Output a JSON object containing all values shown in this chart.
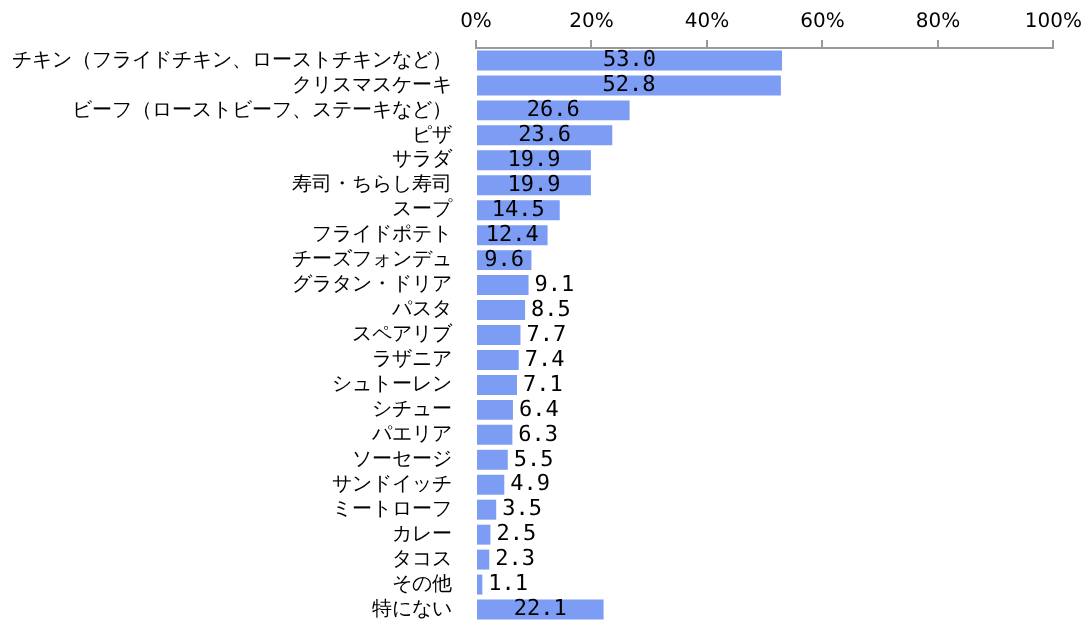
{
  "chart_data": {
    "type": "bar",
    "orientation": "horizontal",
    "categories": [
      "チキン（フライドチキン、ローストチキンなど）",
      "クリスマスケーキ",
      "ビーフ（ローストビーフ、ステーキなど）",
      "ピザ",
      "サラダ",
      "寿司・ちらし寿司",
      "スープ",
      "フライドポテト",
      "チーズフォンデュ",
      "グラタン・ドリア",
      "パスタ",
      "スペアリブ",
      "ラザニア",
      "シュトーレン",
      "シチュー",
      "パエリア",
      "ソーセージ",
      "サンドイッチ",
      "ミートローフ",
      "カレー",
      "タコス",
      "その他",
      "特にない"
    ],
    "values": [
      53.0,
      52.8,
      26.6,
      23.6,
      19.9,
      19.9,
      14.5,
      12.4,
      9.6,
      9.1,
      8.5,
      7.7,
      7.4,
      7.1,
      6.4,
      6.3,
      5.5,
      4.9,
      3.5,
      2.5,
      2.3,
      1.1,
      22.1
    ],
    "color": "#7d9df5",
    "xlim": [
      0,
      100
    ],
    "xticks": [
      {
        "value": 0,
        "label": "0%"
      },
      {
        "value": 20,
        "label": "20%"
      },
      {
        "value": 40,
        "label": "40%"
      },
      {
        "value": 60,
        "label": "60%"
      },
      {
        "value": 80,
        "label": "80%"
      },
      {
        "value": 100,
        "label": "100%"
      }
    ],
    "value_labels": [
      "53.0",
      "52.8",
      "26.6",
      "23.6",
      "19.9",
      "19.9",
      "14.5",
      "12.4",
      "9.6",
      "9.1",
      "8.5",
      "7.7",
      "7.4",
      "7.1",
      "6.4",
      "6.3",
      "5.5",
      "4.9",
      "3.5",
      "2.5",
      "2.3",
      "1.1",
      "22.1"
    ],
    "grid": false,
    "legend": false
  }
}
